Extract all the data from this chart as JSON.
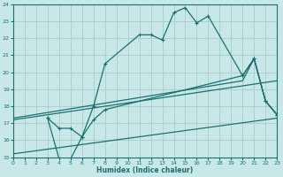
{
  "xlabel": "Humidex (Indice chaleur)",
  "xlim": [
    0,
    23
  ],
  "ylim": [
    15,
    24
  ],
  "xticks": [
    0,
    1,
    2,
    3,
    4,
    5,
    6,
    7,
    8,
    9,
    10,
    11,
    12,
    13,
    14,
    15,
    16,
    17,
    18,
    19,
    20,
    21,
    22,
    23
  ],
  "yticks": [
    15,
    16,
    17,
    18,
    19,
    20,
    21,
    22,
    23,
    24
  ],
  "background_color": "#c8e8e8",
  "grid_color": "#a8cccc",
  "line_color": "#1a7070",
  "line1_x": [
    3,
    4,
    5,
    6,
    7,
    8,
    11,
    12,
    13,
    14,
    15,
    16,
    17,
    20,
    21,
    22,
    23
  ],
  "line1_y": [
    17.3,
    16.7,
    16.7,
    16.2,
    18.0,
    20.5,
    22.2,
    22.2,
    21.9,
    23.5,
    23.8,
    22.9,
    23.3,
    19.8,
    20.8,
    18.3,
    17.5
  ],
  "line2_x": [
    3,
    4,
    5,
    6,
    7,
    8,
    20,
    21,
    22,
    23
  ],
  "line2_y": [
    17.3,
    14.9,
    14.9,
    16.2,
    17.2,
    17.8,
    19.8,
    20.8,
    18.3,
    17.5
  ],
  "line3_x": [
    0,
    20,
    21,
    22,
    23
  ],
  "line3_y": [
    17.3,
    19.5,
    20.8,
    18.3,
    17.5
  ],
  "line4_x": [
    0,
    23
  ],
  "line4_y": [
    17.2,
    19.5
  ],
  "line5_x": [
    0,
    23
  ],
  "line5_y": [
    15.2,
    17.3
  ]
}
